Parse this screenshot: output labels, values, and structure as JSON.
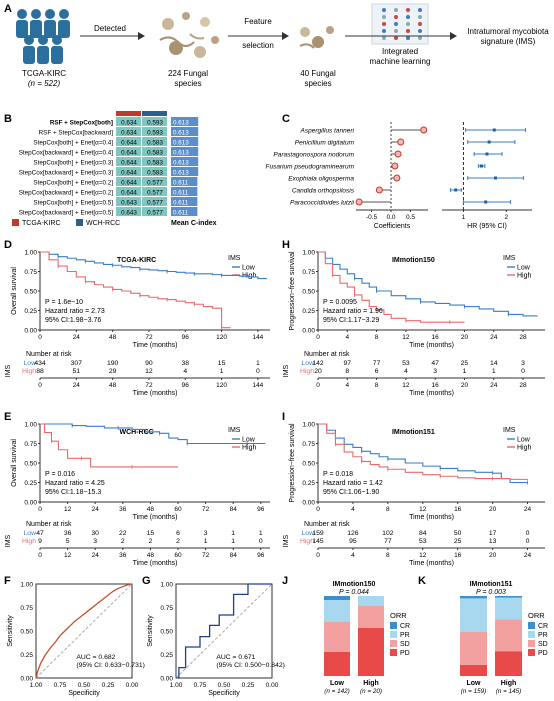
{
  "panel_letters": [
    "A",
    "B",
    "C",
    "D",
    "E",
    "F",
    "G",
    "H",
    "I",
    "J",
    "K"
  ],
  "panelA": {
    "cohort_line1": "TCGA-KIRC",
    "cohort_line2": "(n = 522)",
    "arrow1": "Detected",
    "species1_line1": "224 Fungal",
    "species1_line2": "species",
    "arrow2_line1": "Feature",
    "arrow2_line2": "selection",
    "species2_line1": "40 Fungal",
    "species2_line2": "species",
    "ml_line1": "Integrated",
    "ml_line2": "machine learning",
    "ims_line1": "Intratumoral mycobiota",
    "ims_line2": "signature (IMS)"
  },
  "panelB": {
    "rows": [
      {
        "label": "RSF + StepCox[both]",
        "tcga": "0.634",
        "wch": "0.593",
        "mean": "0.613",
        "bold": true
      },
      {
        "label": "RSF + StepCox[backward]",
        "tcga": "0.634",
        "wch": "0.593",
        "mean": "0.613"
      },
      {
        "label": "StepCox[both] + Enet[α=0.4]",
        "tcga": "0.644",
        "wch": "0.583",
        "mean": "0.613"
      },
      {
        "label": "StepCox[backward] + Enet[α=0.4]",
        "tcga": "0.644",
        "wch": "0.583",
        "mean": "0.613"
      },
      {
        "label": "StepCox[both] + Enet[α=0.3]",
        "tcga": "0.644",
        "wch": "0.583",
        "mean": "0.613"
      },
      {
        "label": "StepCox[backward] + Enet[α=0.3]",
        "tcga": "0.644",
        "wch": "0.583",
        "mean": "0.613"
      },
      {
        "label": "StepCox[both] + Enet[α=0.2]",
        "tcga": "0.644",
        "wch": "0.577",
        "mean": "0.611"
      },
      {
        "label": "StepCox[backward] + Enet[α=0.2]",
        "tcga": "0.644",
        "wch": "0.577",
        "mean": "0.611"
      },
      {
        "label": "StepCox[both] + Enet[α=0.5]",
        "tcga": "0.643",
        "wch": "0.577",
        "mean": "0.611"
      },
      {
        "label": "StepCox[backward] + Enet[α=0.5]",
        "tcga": "0.643",
        "wch": "0.577",
        "mean": "0.611"
      }
    ],
    "legend": [
      {
        "label": "TCGA-KIRC",
        "color": "#c0392b"
      },
      {
        "label": "WCH-RCC",
        "color": "#2e5e8e"
      }
    ],
    "mean_label": "Mean C-index",
    "colors": {
      "tcga": "#c0392b",
      "wch": "#2e5e8e",
      "cell": "#7fc8c2",
      "mean": "#5b8fc9"
    }
  },
  "chart_data": [
    {
      "panel": "C",
      "type": "forest",
      "species": [
        "Aspergillus tanneri",
        "Penicillium digitatum",
        "Parastagonospora nodorum",
        "Fusarium pseudograminearum",
        "Exophiala oligosperma",
        "Candida orthopsilosis",
        "Paracoccidioides lutzii"
      ],
      "coefficients": [
        0.84,
        0.25,
        0.18,
        0.1,
        0.15,
        -0.3,
        -0.82
      ],
      "coef_ticks": [
        "-0.5",
        "0.0",
        "0.5"
      ],
      "coef_xlim": [
        -0.9,
        0.95
      ],
      "hr": [
        1.72,
        1.6,
        1.55,
        1.42,
        1.75,
        0.82,
        1.52
      ],
      "hr_lo": [
        1.05,
        1.1,
        1.25,
        1.35,
        1.1,
        0.7,
        1.0
      ],
      "hr_hi": [
        2.45,
        2.2,
        1.9,
        1.5,
        2.4,
        0.95,
        2.1
      ],
      "hr_ticks": [
        "1",
        "2"
      ],
      "hr_xlim": [
        0.5,
        2.6
      ],
      "xlabel_coef": "Coefficients",
      "xlabel_hr": "HR (95% CI)"
    },
    {
      "panel": "D",
      "type": "line",
      "title": "TCGA-KIRC",
      "legend_title": "IMS",
      "series_names": [
        "Low",
        "High"
      ],
      "xlabel": "Time (months)",
      "ylabel": "Overall survival",
      "xticks": [
        0,
        24,
        48,
        72,
        96,
        120,
        144
      ],
      "xlim": [
        0,
        152
      ],
      "yticks": [
        "0.00",
        "0.25",
        "0.50",
        "0.75",
        "1.00"
      ],
      "stats": [
        "P = 1.6e−10",
        "Hazard ratio = 2.73",
        "95% CI:1.98−3.76"
      ],
      "series": [
        {
          "name": "Low",
          "x": [
            0,
            6,
            12,
            18,
            24,
            30,
            36,
            42,
            48,
            54,
            60,
            66,
            72,
            78,
            84,
            90,
            96,
            102,
            108,
            114,
            120,
            126,
            132,
            138,
            144,
            150
          ],
          "y": [
            1,
            0.97,
            0.94,
            0.92,
            0.9,
            0.88,
            0.86,
            0.84,
            0.83,
            0.81,
            0.8,
            0.78,
            0.77,
            0.76,
            0.75,
            0.74,
            0.73,
            0.72,
            0.72,
            0.71,
            0.7,
            0.7,
            0.69,
            0.68,
            0.66,
            0.66
          ]
        },
        {
          "name": "High",
          "x": [
            0,
            6,
            12,
            18,
            24,
            30,
            36,
            42,
            48,
            54,
            60,
            66,
            72,
            78,
            84,
            90,
            96,
            102,
            108,
            114,
            120,
            126
          ],
          "y": [
            1,
            0.9,
            0.82,
            0.75,
            0.68,
            0.62,
            0.58,
            0.55,
            0.52,
            0.5,
            0.47,
            0.44,
            0.42,
            0.4,
            0.39,
            0.37,
            0.35,
            0.33,
            0.3,
            0.28,
            0.03,
            0.03
          ]
        }
      ],
      "risk_title": "Number at risk",
      "risk": [
        {
          "name": "Low",
          "values": [
            "434",
            "307",
            "190",
            "90",
            "38",
            "15",
            "1"
          ]
        },
        {
          "name": "High",
          "values": [
            "88",
            "51",
            "29",
            "12",
            "4",
            "1",
            "0"
          ]
        }
      ],
      "risk_label": "IMS"
    },
    {
      "panel": "E",
      "type": "line",
      "title": "WCH-RCC",
      "legend_title": "IMS",
      "series_names": [
        "Low",
        "High"
      ],
      "xlabel": "Time (months)",
      "ylabel": "Overall survival",
      "xticks": [
        0,
        12,
        24,
        36,
        48,
        60,
        72,
        84,
        96
      ],
      "xlim": [
        0,
        100
      ],
      "yticks": [
        "0.00",
        "0.25",
        "0.50",
        "0.75",
        "1.00"
      ],
      "stats": [
        "P = 0.016",
        "Hazard ratio = 4.25",
        "95% CI:1.18−15.3"
      ],
      "series": [
        {
          "name": "Low",
          "x": [
            0,
            10,
            14,
            20,
            28,
            34,
            40,
            46,
            52,
            56,
            60,
            64,
            70,
            80,
            90,
            98
          ],
          "y": [
            1,
            1,
            0.98,
            0.97,
            0.95,
            0.95,
            0.93,
            0.9,
            0.88,
            0.82,
            0.8,
            0.75,
            0.75,
            0.75,
            0.75,
            0.75
          ]
        },
        {
          "name": "High",
          "x": [
            0,
            2,
            5,
            8,
            12,
            18,
            22,
            30,
            40,
            50,
            60
          ],
          "y": [
            1,
            0.89,
            0.78,
            0.67,
            0.56,
            0.56,
            0.45,
            0.45,
            0.45,
            0.45,
            0.45
          ]
        }
      ],
      "risk_title": "Number at risk",
      "risk": [
        {
          "name": "Low",
          "values": [
            "47",
            "36",
            "30",
            "22",
            "15",
            "6",
            "3",
            "1",
            "1"
          ]
        },
        {
          "name": "High",
          "values": [
            "9",
            "5",
            "3",
            "2",
            "2",
            "2",
            "1",
            "1",
            "0"
          ]
        }
      ],
      "risk_label": "IMS"
    },
    {
      "panel": "H",
      "type": "line",
      "title": "IMmotion150",
      "legend_title": "IMS",
      "series_names": [
        "Low",
        "High"
      ],
      "xlabel": "Time (months)",
      "ylabel": "Progression−free survival",
      "xticks": [
        0,
        4,
        8,
        12,
        16,
        20,
        24,
        28
      ],
      "xlim": [
        0,
        31
      ],
      "yticks": [
        "0.00",
        "0.25",
        "0.50",
        "0.75",
        "1.00"
      ],
      "stats": [
        "P = 0.0095",
        "Hazard ratio = 1.96",
        "95% CI:1.17−3.29"
      ],
      "series": [
        {
          "name": "Low",
          "x": [
            0,
            1,
            2,
            3,
            4,
            5,
            6,
            7,
            8,
            10,
            12,
            14,
            16,
            18,
            20,
            22,
            24,
            26,
            28,
            30
          ],
          "y": [
            1,
            0.92,
            0.84,
            0.78,
            0.72,
            0.66,
            0.6,
            0.55,
            0.5,
            0.44,
            0.4,
            0.36,
            0.34,
            0.32,
            0.3,
            0.27,
            0.24,
            0.2,
            0.18,
            0.18
          ]
        },
        {
          "name": "High",
          "x": [
            0,
            1,
            2,
            3,
            4,
            5,
            6,
            7,
            8,
            9,
            10,
            12,
            14,
            16,
            18,
            20
          ],
          "y": [
            1,
            0.85,
            0.7,
            0.6,
            0.55,
            0.45,
            0.38,
            0.3,
            0.26,
            0.2,
            0.15,
            0.12,
            0.1,
            0.1,
            0.1,
            0.1
          ]
        }
      ],
      "risk_title": "Number at risk",
      "risk": [
        {
          "name": "Low",
          "values": [
            "142",
            "97",
            "77",
            "53",
            "47",
            "25",
            "14",
            "3"
          ]
        },
        {
          "name": "High",
          "values": [
            "20",
            "8",
            "6",
            "4",
            "3",
            "1",
            "1",
            "0"
          ]
        }
      ],
      "risk_label": "IMS"
    },
    {
      "panel": "I",
      "type": "line",
      "title": "IMmotion151",
      "legend_title": "IMS",
      "series_names": [
        "Low",
        "High"
      ],
      "xlabel": "Time (months)",
      "ylabel": "Progression−free survival",
      "xticks": [
        0,
        4,
        8,
        12,
        16,
        20,
        24
      ],
      "xlim": [
        0,
        26
      ],
      "yticks": [
        "0.00",
        "0.25",
        "0.50",
        "0.75",
        "1.00"
      ],
      "stats": [
        "P = 0.018",
        "Hazard ratio = 1.42",
        "95% CI:1.06−1.90"
      ],
      "series": [
        {
          "name": "Low",
          "x": [
            0,
            1,
            2,
            3,
            4,
            5,
            6,
            7,
            8,
            10,
            12,
            14,
            16,
            18,
            20,
            21,
            22,
            24
          ],
          "y": [
            1,
            0.92,
            0.82,
            0.74,
            0.7,
            0.65,
            0.62,
            0.58,
            0.55,
            0.5,
            0.46,
            0.43,
            0.4,
            0.38,
            0.37,
            0.3,
            0.25,
            0.25
          ]
        },
        {
          "name": "High",
          "x": [
            0,
            1,
            2,
            3,
            4,
            5,
            6,
            7,
            8,
            10,
            12,
            14,
            16,
            18,
            20,
            22,
            24
          ],
          "y": [
            1,
            0.88,
            0.74,
            0.64,
            0.58,
            0.52,
            0.48,
            0.45,
            0.42,
            0.38,
            0.35,
            0.33,
            0.31,
            0.3,
            0.3,
            0.29,
            0.28
          ]
        }
      ],
      "risk_title": "Number at risk",
      "risk": [
        {
          "name": "Low",
          "values": [
            "159",
            "126",
            "102",
            "84",
            "50",
            "17",
            "0"
          ]
        },
        {
          "name": "High",
          "values": [
            "145",
            "95",
            "77",
            "53",
            "25",
            "13",
            "0"
          ]
        }
      ],
      "risk_label": "IMS"
    },
    {
      "panel": "F",
      "type": "line",
      "auc": "AUC = 0.682",
      "ci": "(95% CI: 0.633−0.731)",
      "xlabel": "Specificity",
      "ylabel": "Sensitivity",
      "xticks": [
        "1.00",
        "0.75",
        "0.50",
        "0.25",
        "0.00"
      ],
      "yticks": [
        "0.00",
        "0.25",
        "0.50",
        "0.75",
        "1.00"
      ],
      "fpr": [
        0,
        0.02,
        0.05,
        0.1,
        0.15,
        0.2,
        0.25,
        0.3,
        0.35,
        0.4,
        0.45,
        0.5,
        0.55,
        0.6,
        0.65,
        0.7,
        0.75,
        0.8,
        0.85,
        0.9,
        0.95,
        1
      ],
      "tpr": [
        0,
        0.08,
        0.16,
        0.25,
        0.32,
        0.38,
        0.45,
        0.5,
        0.55,
        0.6,
        0.64,
        0.68,
        0.72,
        0.76,
        0.8,
        0.84,
        0.88,
        0.92,
        0.95,
        0.97,
        0.99,
        1
      ]
    },
    {
      "panel": "G",
      "type": "line",
      "auc": "AUC = 0.671",
      "ci": "(95% CI: 0.500−0.842)",
      "xlabel": "Specificity",
      "ylabel": "Sensitivity",
      "xticks": [
        "1.00",
        "0.75",
        "0.50",
        "0.25",
        "0.00"
      ],
      "yticks": [
        "0.00",
        "0.25",
        "0.50",
        "0.75",
        "1.00"
      ],
      "fpr": [
        0,
        0.03,
        0.03,
        0.1,
        0.1,
        0.25,
        0.25,
        0.35,
        0.35,
        0.45,
        0.45,
        0.6,
        0.6,
        0.75,
        0.75,
        1
      ],
      "tpr": [
        0,
        0,
        0.11,
        0.11,
        0.33,
        0.33,
        0.44,
        0.44,
        0.56,
        0.56,
        0.67,
        0.67,
        0.89,
        0.89,
        1,
        1
      ]
    },
    {
      "panel": "J",
      "type": "bar",
      "title": "IMmotion150",
      "p": "P = 0.044",
      "categories": [
        "Low",
        "High"
      ],
      "n_labels": [
        "(n = 142)",
        "(n = 20)"
      ],
      "stack_order": [
        "PD",
        "SD",
        "PR",
        "CR"
      ],
      "series": [
        {
          "name": "PD",
          "values": [
            0.3,
            0.6
          ]
        },
        {
          "name": "SD",
          "values": [
            0.38,
            0.28
          ]
        },
        {
          "name": "PR",
          "values": [
            0.27,
            0.12
          ]
        },
        {
          "name": "CR",
          "values": [
            0.05,
            0.0
          ]
        }
      ],
      "legend_title": "ORR",
      "legend": [
        "CR",
        "PR",
        "SD",
        "PD"
      ],
      "colors": {
        "CR": "#3b8ed0",
        "PR": "#a8d8f0",
        "SD": "#f2a0a0",
        "PD": "#e84a4a"
      }
    },
    {
      "panel": "K",
      "type": "bar",
      "title": "IMmotion151",
      "p": "P = 0.003",
      "categories": [
        "Low",
        "High"
      ],
      "n_labels": [
        "(n = 159)",
        "(n = 145)"
      ],
      "stack_order": [
        "PD",
        "SD",
        "PR",
        "CR"
      ],
      "series": [
        {
          "name": "PD",
          "values": [
            0.14,
            0.31
          ]
        },
        {
          "name": "SD",
          "values": [
            0.41,
            0.4
          ]
        },
        {
          "name": "PR",
          "values": [
            0.42,
            0.27
          ]
        },
        {
          "name": "CR",
          "values": [
            0.03,
            0.02
          ]
        }
      ],
      "legend_title": "ORR",
      "legend": [
        "CR",
        "PR",
        "SD",
        "PD"
      ],
      "colors": {
        "CR": "#3b8ed0",
        "PR": "#a8d8f0",
        "SD": "#f2a0a0",
        "PD": "#e84a4a"
      }
    }
  ],
  "colors": {
    "low": "#3a7dc9",
    "high": "#e8696c",
    "low_text": "#3a7dc9",
    "high_text": "#e8696c",
    "roc_f": "#c0532a",
    "roc_g": "#1f3f8c",
    "grid": "#dddddd",
    "axis": "#333333",
    "figure_blue": "#2b6f9e"
  }
}
